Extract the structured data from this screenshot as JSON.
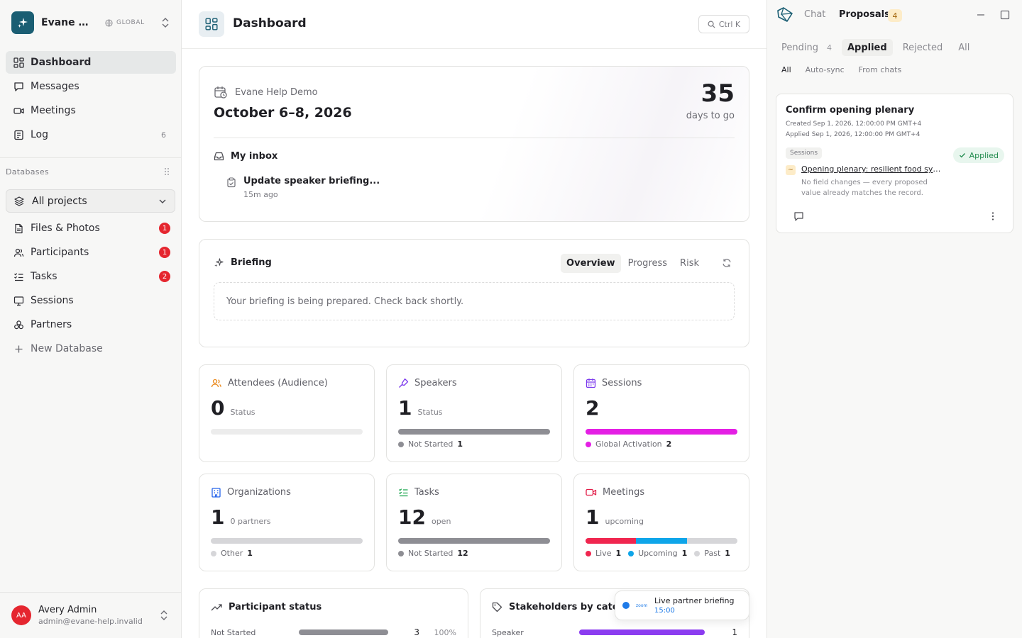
{
  "workspace": {
    "name": "Evane Help Demo",
    "scope": "GLOBAL"
  },
  "sidebar": {
    "primary": [
      {
        "label": "Dashboard",
        "icon": "dashboard-icon",
        "active": true
      },
      {
        "label": "Messages",
        "icon": "message-icon"
      },
      {
        "label": "Meetings",
        "icon": "video-icon"
      },
      {
        "label": "Log",
        "icon": "log-icon",
        "count": "6"
      }
    ],
    "databases_label": "Databases",
    "project_selector": "All projects",
    "databases": [
      {
        "label": "Files & Photos",
        "icon": "files-icon",
        "badge": "1"
      },
      {
        "label": "Participants",
        "icon": "participants-icon",
        "badge": "1"
      },
      {
        "label": "Tasks",
        "icon": "tasks-icon",
        "badge": "2"
      },
      {
        "label": "Sessions",
        "icon": "sessions-icon"
      },
      {
        "label": "Partners",
        "icon": "partners-icon"
      }
    ],
    "new_database": "New Database"
  },
  "user": {
    "initials": "AA",
    "name": "Avery Admin",
    "email": "admin@evane-help.invalid"
  },
  "header": {
    "title": "Dashboard",
    "search_shortcut": "Ctrl K"
  },
  "event": {
    "name": "Evane Help Demo",
    "dates": "October 6–8, 2026",
    "days": "35",
    "days_label": "days to go",
    "inbox_title": "My inbox",
    "inbox_item": "Update speaker briefing...",
    "inbox_time": "15m ago"
  },
  "briefing": {
    "title": "Briefing",
    "tabs": [
      "Overview",
      "Progress",
      "Risk"
    ],
    "active_tab": "Overview",
    "message": "Your briefing is being prepared. Check back shortly."
  },
  "stats": [
    {
      "title": "Attendees (Audience)",
      "icon": "attendees-icon",
      "value": "0",
      "unit": "Status",
      "segments": [],
      "legend": []
    },
    {
      "title": "Speakers",
      "icon": "speaker-icon",
      "value": "1",
      "unit": "Status",
      "segments": [
        {
          "fraction": 1,
          "color": "#8e8e94"
        }
      ],
      "legend": [
        {
          "label": "Not Started",
          "count": "1",
          "color": "#8e8e94"
        }
      ]
    },
    {
      "title": "Sessions",
      "icon": "calendar-icon",
      "value": "2",
      "unit": "",
      "segments": [
        {
          "fraction": 1,
          "color": "#e41fe4"
        }
      ],
      "legend": [
        {
          "label": "Global Activation",
          "count": "2",
          "color": "#e41fe4"
        }
      ]
    },
    {
      "title": "Organizations",
      "icon": "building-icon",
      "value": "1",
      "unit": "0 partners",
      "segments": [
        {
          "fraction": 1,
          "color": "#d6d6d9"
        }
      ],
      "legend": [
        {
          "label": "Other",
          "count": "1",
          "color": "#d6d6d9"
        }
      ]
    },
    {
      "title": "Tasks",
      "icon": "checklist-icon",
      "value": "12",
      "unit": "open",
      "segments": [
        {
          "fraction": 1,
          "color": "#8e8e94"
        }
      ],
      "legend": [
        {
          "label": "Not Started",
          "count": "12",
          "color": "#8e8e94"
        }
      ]
    },
    {
      "title": "Meetings",
      "icon": "video-icon",
      "value": "1",
      "unit": "upcoming",
      "segments": [
        {
          "fraction": 0.333,
          "color": "#f0264f"
        },
        {
          "fraction": 0.334,
          "color": "#0ea5e9"
        },
        {
          "fraction": 0.333,
          "color": "#d6d6d9"
        }
      ],
      "legend": [
        {
          "label": "Live",
          "count": "1",
          "color": "#f0264f"
        },
        {
          "label": "Upcoming",
          "count": "1",
          "color": "#0ea5e9"
        },
        {
          "label": "Past",
          "count": "1",
          "color": "#d6d6d9"
        }
      ]
    }
  ],
  "participant_status": {
    "title": "Participant status",
    "row_label": "Not Started",
    "row_count": "3",
    "row_pct": "100%",
    "fraction": 1
  },
  "stakeholders": {
    "title": "Stakeholders by categ",
    "row_label": "Speaker",
    "row_count": "1",
    "fraction": 1
  },
  "toast": {
    "brand": "zoom",
    "title": "Live partner briefing",
    "time": "15:00"
  },
  "panel": {
    "tabs": [
      "Chat",
      "Proposals"
    ],
    "active_tab": "Proposals",
    "proposals_count": "4",
    "subtabs": [
      {
        "label": "Pending",
        "count": "4"
      },
      {
        "label": "Applied"
      },
      {
        "label": "Rejected"
      },
      {
        "label": "All"
      }
    ],
    "active_subtab": "Applied",
    "filters": [
      "All",
      "Auto-sync",
      "From chats"
    ],
    "active_filter": "All",
    "proposal": {
      "title": "Confirm opening plenary",
      "created": "Created Sep 1, 2026, 12:00:00 PM GMT+4",
      "applied": "Applied Sep 1, 2026, 12:00:00 PM GMT+4",
      "tag": "Sessions",
      "status": "Applied",
      "marker": "~",
      "link": "Opening plenary: resilient food systems",
      "note": "No field changes — every proposed value already matches the record."
    }
  }
}
